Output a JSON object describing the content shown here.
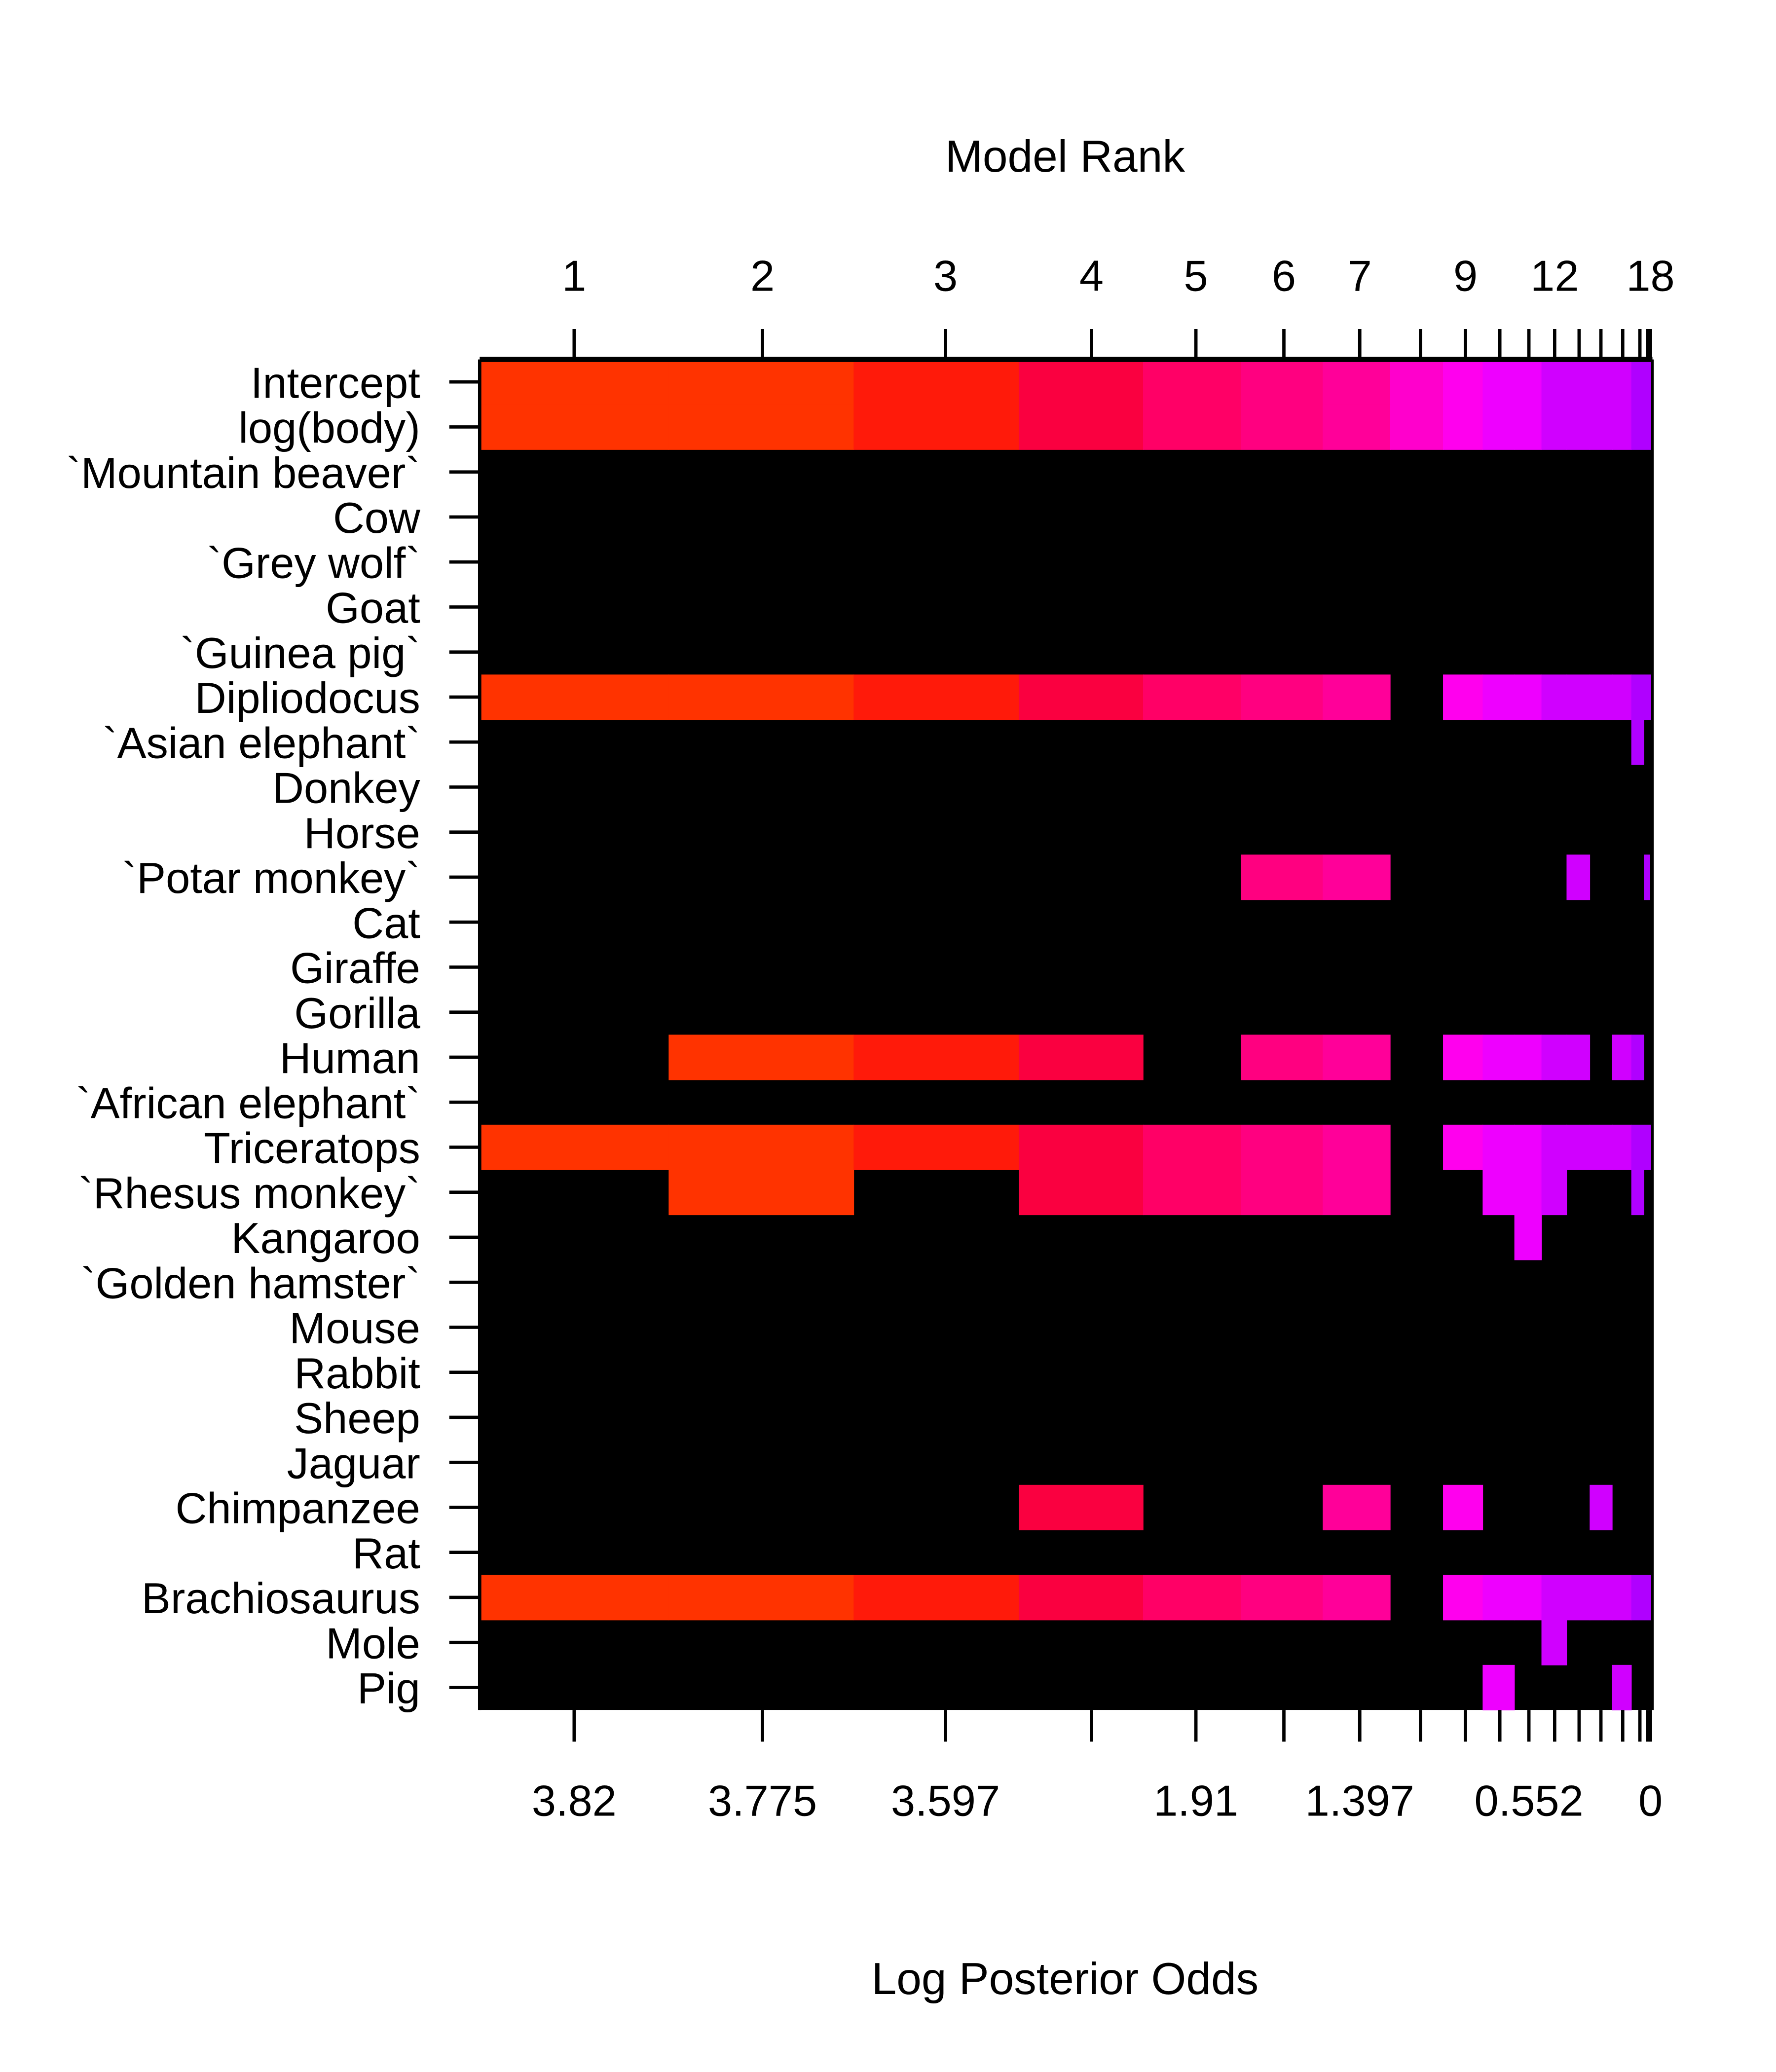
{
  "chart_data": {
    "type": "heatmap",
    "title": "",
    "top_axis_label": "Model Rank",
    "xlabel": "Log Posterior Odds",
    "model_ranks": [
      1,
      2,
      3,
      4,
      5,
      6,
      7,
      8,
      9,
      10,
      11,
      12,
      13,
      14,
      15,
      16,
      17,
      18
    ],
    "top_tick_labels": [
      {
        "rank": 1,
        "label": "1"
      },
      {
        "rank": 2,
        "label": "2"
      },
      {
        "rank": 3,
        "label": "3"
      },
      {
        "rank": 4,
        "label": "4"
      },
      {
        "rank": 5,
        "label": "5"
      },
      {
        "rank": 6,
        "label": "6"
      },
      {
        "rank": 7,
        "label": "7"
      },
      {
        "rank": 9,
        "label": "9"
      },
      {
        "rank": 12,
        "label": "12"
      },
      {
        "rank": 18,
        "label": "18"
      }
    ],
    "bottom_tick_labels": [
      {
        "rank": 1,
        "label": "3.82"
      },
      {
        "rank": 2,
        "label": "3.775"
      },
      {
        "rank": 3,
        "label": "3.597"
      },
      {
        "rank": 5,
        "label": "1.91"
      },
      {
        "rank": 7,
        "label": "1.397"
      },
      {
        "rank": 11,
        "label": "0.552"
      },
      {
        "rank": 18,
        "label": "0"
      }
    ],
    "model_colors": [
      "#FF3300",
      "#FF3300",
      "#FF1A0A",
      "#FA0040",
      "#FF0066",
      "#FF0080",
      "#FF0099",
      "#FF00CC",
      "#FF00EE",
      "#EE00FF",
      "#EE00FF",
      "#D000FF",
      "#D000FF",
      "#D000FF",
      "#D000FF",
      "#B000FF",
      "#B000FF",
      "#B000FF"
    ],
    "excluded_color": "#000000",
    "variables": [
      {
        "name": "Intercept",
        "included_models": [
          1,
          2,
          3,
          4,
          5,
          6,
          7,
          8,
          9,
          10,
          11,
          12,
          13,
          14,
          15,
          16,
          17,
          18
        ]
      },
      {
        "name": "log(body)",
        "included_models": [
          1,
          2,
          3,
          4,
          5,
          6,
          7,
          8,
          9,
          10,
          11,
          12,
          13,
          14,
          15,
          16,
          17,
          18
        ]
      },
      {
        "name": "`Mountain beaver`",
        "included_models": []
      },
      {
        "name": "Cow",
        "included_models": []
      },
      {
        "name": "`Grey wolf`",
        "included_models": []
      },
      {
        "name": "Goat",
        "included_models": []
      },
      {
        "name": "`Guinea pig`",
        "included_models": []
      },
      {
        "name": "Dipliodocus",
        "included_models": [
          1,
          2,
          3,
          4,
          5,
          6,
          7,
          9,
          10,
          11,
          12,
          13,
          14,
          15,
          16,
          17,
          18
        ]
      },
      {
        "name": "`Asian elephant`",
        "included_models": [
          16
        ]
      },
      {
        "name": "Donkey",
        "included_models": []
      },
      {
        "name": "Horse",
        "included_models": []
      },
      {
        "name": "`Potar monkey`",
        "included_models": [
          6,
          7,
          13,
          17
        ]
      },
      {
        "name": "Cat",
        "included_models": []
      },
      {
        "name": "Giraffe",
        "included_models": []
      },
      {
        "name": "Gorilla",
        "included_models": []
      },
      {
        "name": "Human",
        "included_models": [
          2,
          3,
          4,
          6,
          7,
          9,
          10,
          11,
          12,
          13,
          15,
          16
        ]
      },
      {
        "name": "`African elephant`",
        "included_models": []
      },
      {
        "name": "Triceratops",
        "included_models": [
          1,
          2,
          3,
          4,
          5,
          6,
          7,
          9,
          10,
          11,
          12,
          13,
          14,
          15,
          16,
          17,
          18
        ]
      },
      {
        "name": "`Rhesus monkey`",
        "included_models": [
          2,
          4,
          5,
          6,
          7,
          10,
          11,
          12,
          16
        ]
      },
      {
        "name": "Kangaroo",
        "included_models": [
          11
        ]
      },
      {
        "name": "`Golden hamster`",
        "included_models": []
      },
      {
        "name": "Mouse",
        "included_models": []
      },
      {
        "name": "Rabbit",
        "included_models": []
      },
      {
        "name": "Sheep",
        "included_models": []
      },
      {
        "name": "Jaguar",
        "included_models": []
      },
      {
        "name": "Chimpanzee",
        "included_models": [
          4,
          7,
          9,
          14
        ]
      },
      {
        "name": "Rat",
        "included_models": []
      },
      {
        "name": "Brachiosaurus",
        "included_models": [
          1,
          2,
          3,
          4,
          5,
          6,
          7,
          9,
          10,
          11,
          12,
          13,
          14,
          15,
          16,
          17,
          18
        ]
      },
      {
        "name": "Mole",
        "included_models": [
          12
        ]
      },
      {
        "name": "Pig",
        "included_models": [
          10,
          15
        ]
      }
    ]
  }
}
